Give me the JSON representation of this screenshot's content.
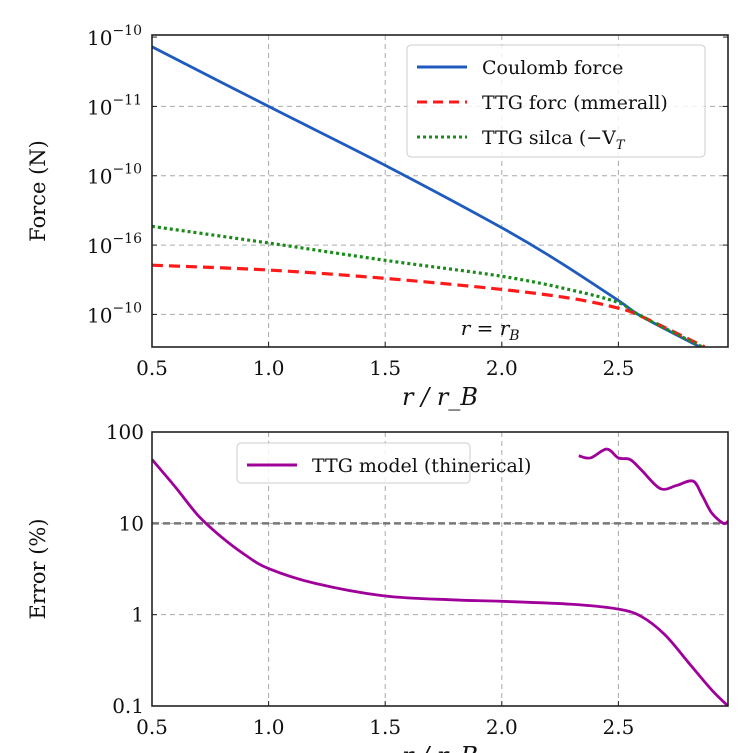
{
  "chart_data": [
    {
      "type": "line",
      "ylabel": "Force (N)",
      "xlabel": "r / r_B",
      "xlim": [
        0.5,
        2.97
      ],
      "xticks": [
        0.5,
        1.0,
        1.5,
        2.0,
        2.5
      ],
      "xtick_labels": [
        "0.5",
        "1.0",
        "1.5",
        "2.0",
        "2.5"
      ],
      "ytick_labels": [
        {
          "base": "10",
          "exp": "−10"
        },
        {
          "base": "10",
          "exp": "−16"
        },
        {
          "base": "10",
          "exp": "−10"
        },
        {
          "base": "10",
          "exp": "−11"
        },
        {
          "base": "10",
          "exp": "−10"
        }
      ],
      "y_scale_note_units": "decade index from bottom tick (ticks evenly spaced, log scale)",
      "ylim": [
        -0.47,
        4.03
      ],
      "grid": true,
      "legend_position": "top-right",
      "annotation": {
        "text": "r = r",
        "sub": "B",
        "x": 1.95
      },
      "series": [
        {
          "name": "Coulomb force",
          "color": "#1f5bbf",
          "style": "solid",
          "x": [
            0.5,
            1.0,
            1.5,
            2.0,
            2.25,
            2.5,
            2.6,
            2.85
          ],
          "y": [
            3.86,
            3.0,
            2.15,
            1.25,
            0.75,
            0.2,
            -0.03,
            -0.47
          ]
        },
        {
          "name": "TTG forc (mmerall)",
          "color": "#ff1a1a",
          "style": "dashed",
          "x": [
            0.5,
            1.0,
            1.5,
            2.0,
            2.3,
            2.5,
            2.6,
            2.87
          ],
          "y": [
            0.71,
            0.64,
            0.52,
            0.36,
            0.23,
            0.09,
            -0.03,
            -0.47
          ]
        },
        {
          "name": "TTG silca (−V",
          "name_sub": "T",
          "color": "#1a8a1a",
          "style": "dotted",
          "x": [
            0.5,
            1.0,
            1.5,
            2.0,
            2.3,
            2.5,
            2.6,
            2.86
          ],
          "y": [
            1.27,
            1.03,
            0.78,
            0.55,
            0.35,
            0.17,
            -0.03,
            -0.47
          ]
        }
      ]
    },
    {
      "type": "line",
      "ylabel": "Error (%)",
      "xlabel": "r / r_B",
      "xlim": [
        0.5,
        2.97
      ],
      "ylim": [
        0.1,
        100
      ],
      "yscale": "log",
      "xticks": [
        0.5,
        1.0,
        1.5,
        2.0,
        2.5
      ],
      "xtick_labels": [
        "0.5",
        "1.0",
        "1.5",
        "2.0",
        "2.5"
      ],
      "yticks": [
        0.1,
        1,
        10,
        100
      ],
      "ytick_labels": [
        "0.1",
        "1",
        "10",
        "100"
      ],
      "grid": true,
      "legend_position": "top-center",
      "reference_line": {
        "y": 10,
        "color": "#777777",
        "style": "dashed"
      },
      "series": [
        {
          "name": "TTG model (thinerical)",
          "color": "#a0009a",
          "style": "solid",
          "x": [
            0.5,
            0.6,
            0.7,
            0.8,
            0.9,
            1.0,
            1.2,
            1.5,
            1.8,
            2.0,
            2.3,
            2.5,
            2.6,
            2.7,
            2.8,
            2.9,
            2.97
          ],
          "y": [
            50,
            25,
            12,
            7,
            4.5,
            3.2,
            2.2,
            1.6,
            1.45,
            1.4,
            1.3,
            1.15,
            0.95,
            0.6,
            0.3,
            0.15,
            0.1
          ]
        },
        {
          "color": "#a0009a",
          "style": "solid",
          "x": [
            2.33,
            2.38,
            2.45,
            2.5,
            2.55,
            2.6,
            2.68,
            2.75,
            2.82,
            2.86,
            2.9,
            2.95,
            2.97
          ],
          "y": [
            55,
            52,
            65,
            52,
            50,
            38,
            24,
            26,
            29,
            20,
            13,
            10,
            10.5
          ]
        }
      ]
    }
  ]
}
